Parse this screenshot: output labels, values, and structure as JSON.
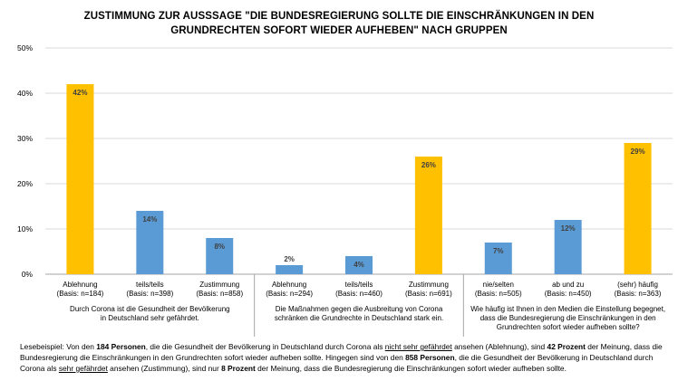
{
  "title_line1": "ZUSTIMMUNG ZUR AUSSSAGE \"DIE BUNDESREGIERUNG SOLLTE DIE EINSCHRÄNKUNGEN IN DEN",
  "title_line2": "GRUNDRECHTEN SOFORT WIEDER AUFHEBEN\" NACH GRUPPEN",
  "colors": {
    "highlight": "#FFC000",
    "normal": "#5B9BD5",
    "grid": "#D9D9D9",
    "axis": "#A6A6A6"
  },
  "chart_data": {
    "type": "bar",
    "ylim": [
      0,
      50
    ],
    "yticks": [
      0,
      10,
      20,
      30,
      40,
      50
    ],
    "ytick_labels": [
      "0%",
      "10%",
      "20%",
      "30%",
      "40%",
      "50%"
    ],
    "grid": true,
    "categories": [
      [
        "Ablehnung",
        "(Basis: n=184)"
      ],
      [
        "teils/teils",
        "(Basis: n=398)"
      ],
      [
        "Zustimmung",
        "(Basis: n=858)"
      ],
      [
        "Ablehnung",
        "(Basis: n=294)"
      ],
      [
        "teils/teils",
        "(Basis: n=460)"
      ],
      [
        "Zustimmung",
        "(Basis: n=691)"
      ],
      [
        "nie/selten",
        "(Basis: n=505)"
      ],
      [
        "ab und zu",
        "(Basis: n=450)"
      ],
      [
        "(sehr) häufig",
        "(Basis: n=363)"
      ]
    ],
    "values": [
      42,
      14,
      8,
      2,
      4,
      26,
      7,
      12,
      29
    ],
    "data_labels": [
      "42%",
      "14%",
      "8%",
      "2%",
      "4%",
      "26%",
      "7%",
      "12%",
      "29%"
    ],
    "highlighted": [
      true,
      false,
      false,
      false,
      false,
      true,
      false,
      false,
      true
    ],
    "groups": [
      {
        "lines": [
          "Durch Corona ist die Gesundheit der Bevölkerung",
          "in Deutschland sehr gefährdet."
        ]
      },
      {
        "lines": [
          "Die Maßnahmen gegen die Ausbreitung von Corona",
          "schränken die Grundrechte in Deutschland stark ein."
        ]
      },
      {
        "lines": [
          "Wie häufig ist Ihnen in den Medien die Einstellung begegnet,",
          "dass die Bundesregierung die Einschränkungen in den",
          "Grundrechten sofort wieder aufheben sollte?"
        ]
      }
    ]
  },
  "footnote": {
    "p1": "Lesebeispiel: Von den ",
    "b1": "184 Personen",
    "p2": ", die die Gesundheit der Bevölkerung in Deutschland durch Corona als ",
    "u1": "nicht sehr gefährdet",
    "p3": " ansehen (Ablehnung), sind ",
    "b2": "42 Prozent",
    "p4": " der Meinung, dass die Bundesregierung die Einschränkungen in den Grundrechten sofort wieder aufheben sollte. Hingegen sind von den ",
    "b3": "858 Personen",
    "p5": ", die die Gesundheit der Bevölkerung in Deutschland durch Corona als ",
    "u2": "sehr gefährdet",
    "p6": " ansehen (Zustimmung), sind nur ",
    "b4": "8 Prozent",
    "p7": " der Meinung, dass die Bundesregierung die Einschränkungen sofort wieder aufheben sollte."
  }
}
